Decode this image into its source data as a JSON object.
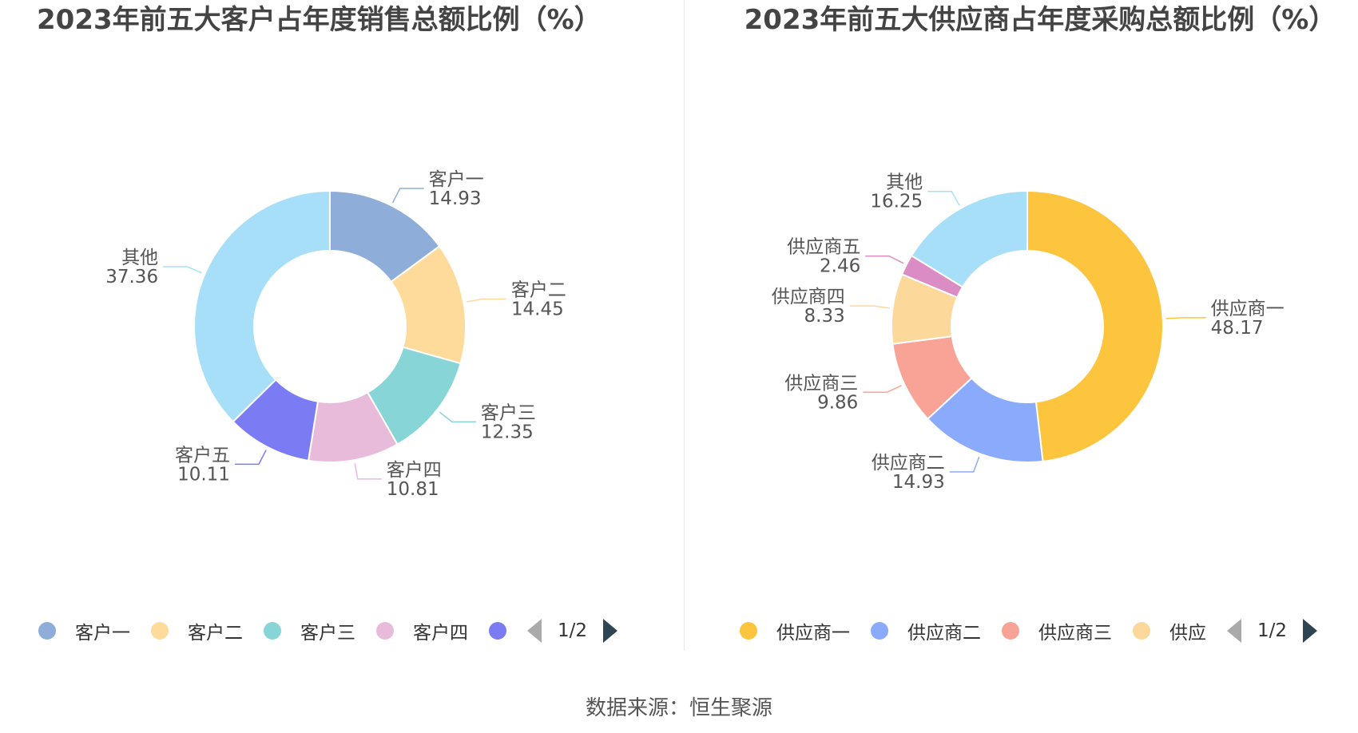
{
  "chart_data": [
    {
      "type": "pie",
      "subtype": "donut",
      "title": "2023年前五大客户占年度销售总额比例（%）",
      "categories": [
        "客户一",
        "客户二",
        "客户三",
        "客户四",
        "客户五",
        "其他"
      ],
      "values": [
        14.93,
        14.45,
        12.35,
        10.81,
        10.11,
        37.36
      ],
      "value_labels": [
        "14.93",
        "14.45",
        "12.35",
        "10.81",
        "10.11",
        "37.36"
      ],
      "colors": [
        "#8eaed9",
        "#fedb9b",
        "#88d5d8",
        "#e8bbdb",
        "#7b7bf3",
        "#a8dff8"
      ],
      "legend": {
        "position": "bottom",
        "visible_items": [
          "客户一",
          "客户二",
          "客户三",
          "客户四",
          ""
        ],
        "page": "1/2"
      }
    },
    {
      "type": "pie",
      "subtype": "donut",
      "title": "2023年前五大供应商占年度采购总额比例（%）",
      "categories": [
        "供应商一",
        "供应商二",
        "供应商三",
        "供应商四",
        "供应商五",
        "其他"
      ],
      "values": [
        48.17,
        14.93,
        9.86,
        8.33,
        2.46,
        16.25
      ],
      "value_labels": [
        "48.17",
        "14.93",
        "9.86",
        "8.33",
        "2.46",
        "16.25"
      ],
      "colors": [
        "#fdc43d",
        "#8aaafc",
        "#f8a396",
        "#fdd89b",
        "#dc8cc4",
        "#a8dff8"
      ],
      "legend": {
        "position": "bottom",
        "visible_items": [
          "供应商一",
          "供应商二",
          "供应商三",
          "供应"
        ],
        "page": "1/2"
      }
    }
  ],
  "source": "数据来源：恒生聚源"
}
